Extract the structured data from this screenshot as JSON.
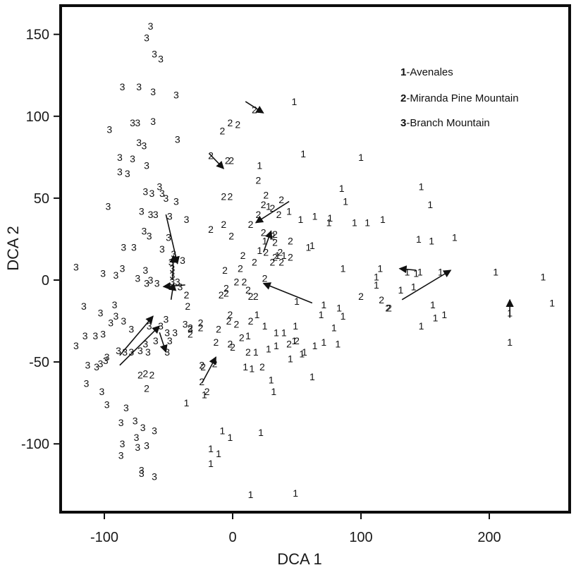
{
  "chart_data": {
    "type": "scatter",
    "xlabel": "DCA 1",
    "ylabel": "DCA 2",
    "xlim": [
      -125,
      260
    ],
    "ylim": [
      -142,
      167
    ],
    "x_ticks": [
      -100,
      0,
      100,
      200
    ],
    "y_ticks": [
      -100,
      -50,
      0,
      50,
      100,
      150
    ],
    "grid": false,
    "legend_position": "top-right",
    "series": [
      {
        "name": "1-Avenales",
        "marker": "1",
        "points": [
          [
            48,
            109
          ],
          [
            55,
            77
          ],
          [
            100,
            75
          ],
          [
            21,
            70
          ],
          [
            85,
            56
          ],
          [
            88,
            48
          ],
          [
            147,
            57
          ],
          [
            154,
            46
          ],
          [
            28,
            45
          ],
          [
            44,
            42
          ],
          [
            64,
            39
          ],
          [
            76,
            38
          ],
          [
            75,
            35
          ],
          [
            53,
            37
          ],
          [
            95,
            35
          ],
          [
            117,
            37
          ],
          [
            105,
            35
          ],
          [
            145,
            25
          ],
          [
            155,
            24
          ],
          [
            173,
            26
          ],
          [
            62,
            21
          ],
          [
            21,
            18
          ],
          [
            25,
            24
          ],
          [
            35,
            15
          ],
          [
            40,
            15
          ],
          [
            59,
            20
          ],
          [
            86,
            7
          ],
          [
            112,
            2
          ],
          [
            115,
            7
          ],
          [
            146,
            5
          ],
          [
            136,
            5
          ],
          [
            143,
            4
          ],
          [
            162,
            5
          ],
          [
            131,
            -6
          ],
          [
            112,
            -3
          ],
          [
            141,
            -4
          ],
          [
            205,
            5
          ],
          [
            242,
            2
          ],
          [
            249,
            -14
          ],
          [
            50,
            -13
          ],
          [
            71,
            -15
          ],
          [
            83,
            -17
          ],
          [
            69,
            -21
          ],
          [
            86,
            -22
          ],
          [
            79,
            -29
          ],
          [
            156,
            -15
          ],
          [
            165,
            -21
          ],
          [
            158,
            -23
          ],
          [
            147,
            -28
          ],
          [
            216,
            -20
          ],
          [
            216,
            -38
          ],
          [
            19,
            -21
          ],
          [
            25,
            -28
          ],
          [
            49,
            -28
          ],
          [
            34,
            -32
          ],
          [
            40,
            -32
          ],
          [
            48,
            -37
          ],
          [
            64,
            -40
          ],
          [
            71,
            -38
          ],
          [
            82,
            -39
          ],
          [
            56,
            -44
          ],
          [
            34,
            -40
          ],
          [
            12,
            -34
          ],
          [
            18,
            -44
          ],
          [
            28,
            -42
          ],
          [
            45,
            -48
          ],
          [
            54,
            -45
          ],
          [
            62,
            -59
          ],
          [
            10,
            -53
          ],
          [
            15,
            -54
          ],
          [
            30,
            -61
          ],
          [
            32,
            -68
          ],
          [
            -36,
            -75
          ],
          [
            -22,
            -70
          ],
          [
            -8,
            -92
          ],
          [
            -2,
            -96
          ],
          [
            -17,
            -103
          ],
          [
            -11,
            -106
          ],
          [
            -17,
            -112
          ],
          [
            22,
            -93
          ],
          [
            14,
            -131
          ],
          [
            49,
            -130
          ]
        ]
      },
      {
        "name": "2-Miranda Pine Mountain",
        "marker": "2",
        "points": [
          [
            17,
            104
          ],
          [
            -2,
            96
          ],
          [
            4,
            95
          ],
          [
            -8,
            91
          ],
          [
            -17,
            76
          ],
          [
            -4,
            73
          ],
          [
            -1,
            73
          ],
          [
            20,
            61
          ],
          [
            -7,
            51
          ],
          [
            -2,
            51
          ],
          [
            26,
            52
          ],
          [
            24,
            46
          ],
          [
            38,
            49
          ],
          [
            20,
            40
          ],
          [
            31,
            44
          ],
          [
            36,
            40
          ],
          [
            14,
            34
          ],
          [
            -17,
            31
          ],
          [
            -7,
            34
          ],
          [
            -1,
            27
          ],
          [
            33,
            28
          ],
          [
            24,
            29
          ],
          [
            31,
            27
          ],
          [
            33,
            23
          ],
          [
            37,
            17
          ],
          [
            45,
            24
          ],
          [
            26,
            17
          ],
          [
            17,
            11
          ],
          [
            -6,
            6
          ],
          [
            6,
            7
          ],
          [
            8,
            15
          ],
          [
            33,
            14
          ],
          [
            45,
            14
          ],
          [
            31,
            11
          ],
          [
            38,
            11
          ],
          [
            3,
            -1
          ],
          [
            9,
            -1
          ],
          [
            -5,
            -5
          ],
          [
            -5,
            -8
          ],
          [
            12,
            -6
          ],
          [
            14,
            -10
          ],
          [
            18,
            -10
          ],
          [
            25,
            1
          ],
          [
            -9,
            -9
          ],
          [
            -36,
            -9
          ],
          [
            -35,
            -16
          ],
          [
            -25,
            -26
          ],
          [
            -25,
            -29
          ],
          [
            -33,
            -29
          ],
          [
            -33,
            -33
          ],
          [
            -2,
            -21
          ],
          [
            -3,
            -25
          ],
          [
            3,
            -27
          ],
          [
            14,
            -25
          ],
          [
            7,
            -35
          ],
          [
            -11,
            -30
          ],
          [
            -13,
            -38
          ],
          [
            -23,
            -53
          ],
          [
            -14,
            -51
          ],
          [
            -24,
            -52
          ],
          [
            -24,
            -62
          ],
          [
            -20,
            -68
          ],
          [
            -68,
            -57
          ],
          [
            -63,
            -58
          ],
          [
            -72,
            -58
          ],
          [
            -67,
            -66
          ],
          [
            0,
            -41
          ],
          [
            -2,
            -39
          ],
          [
            44,
            -39
          ],
          [
            50,
            -37
          ],
          [
            12,
            -44
          ],
          [
            23,
            -53
          ],
          [
            100,
            -10
          ],
          [
            116,
            -12
          ],
          [
            121,
            -17
          ],
          [
            122,
            -17
          ]
        ]
      },
      {
        "name": "3-Branch Mountain",
        "marker": "3",
        "points": [
          [
            -64,
            155
          ],
          [
            -67,
            148
          ],
          [
            -61,
            138
          ],
          [
            -56,
            135
          ],
          [
            -86,
            118
          ],
          [
            -73,
            118
          ],
          [
            -62,
            115
          ],
          [
            -44,
            113
          ],
          [
            -78,
            96
          ],
          [
            -74,
            96
          ],
          [
            -62,
            97
          ],
          [
            -43,
            86
          ],
          [
            -96,
            92
          ],
          [
            -73,
            84
          ],
          [
            -69,
            82
          ],
          [
            -88,
            75
          ],
          [
            -78,
            74
          ],
          [
            -67,
            70
          ],
          [
            -88,
            66
          ],
          [
            -82,
            65
          ],
          [
            -57,
            57
          ],
          [
            -68,
            54
          ],
          [
            -63,
            53
          ],
          [
            -55,
            53
          ],
          [
            -52,
            50
          ],
          [
            -44,
            48
          ],
          [
            -71,
            42
          ],
          [
            -64,
            40
          ],
          [
            -60,
            40
          ],
          [
            -49,
            39
          ],
          [
            -36,
            37
          ],
          [
            -97,
            45
          ],
          [
            -69,
            30
          ],
          [
            -65,
            27
          ],
          [
            -50,
            26
          ],
          [
            -85,
            20
          ],
          [
            -77,
            20
          ],
          [
            -55,
            19
          ],
          [
            -46,
            16
          ],
          [
            -48,
            11
          ],
          [
            -39,
            12
          ],
          [
            -47,
            7
          ],
          [
            -68,
            6
          ],
          [
            -91,
            3
          ],
          [
            -86,
            7
          ],
          [
            -101,
            4
          ],
          [
            -47,
            3
          ],
          [
            -64,
            0
          ],
          [
            -67,
            -2
          ],
          [
            -74,
            1
          ],
          [
            -43,
            -1
          ],
          [
            -47,
            -1
          ],
          [
            -59,
            -2
          ],
          [
            -41,
            -4
          ],
          [
            -122,
            8
          ],
          [
            -116,
            -16
          ],
          [
            -103,
            -20
          ],
          [
            -92,
            -15
          ],
          [
            -91,
            -22
          ],
          [
            -95,
            -26
          ],
          [
            -85,
            -25
          ],
          [
            -79,
            -30
          ],
          [
            -65,
            -28
          ],
          [
            -52,
            -24
          ],
          [
            -56,
            -28
          ],
          [
            -51,
            -32
          ],
          [
            -45,
            -32
          ],
          [
            -49,
            -37
          ],
          [
            -60,
            -37
          ],
          [
            -51,
            -44
          ],
          [
            -68,
            -39
          ],
          [
            -66,
            -44
          ],
          [
            -72,
            -43
          ],
          [
            -79,
            -44
          ],
          [
            -89,
            -43
          ],
          [
            -84,
            -44
          ],
          [
            -98,
            -47
          ],
          [
            -99,
            -49
          ],
          [
            -115,
            -34
          ],
          [
            -107,
            -34
          ],
          [
            -101,
            -33
          ],
          [
            -122,
            -40
          ],
          [
            -103,
            -51
          ],
          [
            -106,
            -53
          ],
          [
            -113,
            -52
          ],
          [
            -114,
            -63
          ],
          [
            -102,
            -68
          ],
          [
            -98,
            -76
          ],
          [
            -83,
            -78
          ],
          [
            -87,
            -87
          ],
          [
            -76,
            -86
          ],
          [
            -70,
            -90
          ],
          [
            -75,
            -96
          ],
          [
            -61,
            -92
          ],
          [
            -67,
            -101
          ],
          [
            -74,
            -102
          ],
          [
            -86,
            -100
          ],
          [
            -87,
            -107
          ],
          [
            -71,
            -116
          ],
          [
            -71,
            -118
          ],
          [
            -61,
            -120
          ],
          [
            -33,
            -30
          ],
          [
            -37,
            -27
          ]
        ]
      }
    ],
    "arrows": [
      [
        [
          10,
          109
        ],
        [
          24,
          102
        ]
      ],
      [
        [
          -18,
          77
        ],
        [
          -7,
          68
        ]
      ],
      [
        [
          44,
          48
        ],
        [
          18,
          35
        ]
      ],
      [
        [
          24,
          17
        ],
        [
          30,
          30
        ]
      ],
      [
        [
          62,
          -14
        ],
        [
          24,
          -2
        ]
      ],
      [
        [
          132,
          -12
        ],
        [
          170,
          6
        ]
      ],
      [
        [
          143,
          6
        ],
        [
          130,
          7
        ]
      ],
      [
        [
          216,
          -23
        ],
        [
          216,
          -12
        ]
      ],
      [
        [
          -52,
          40
        ],
        [
          -43,
          10
        ]
      ],
      [
        [
          -47,
          0
        ],
        [
          -46,
          15
        ]
      ],
      [
        [
          -37,
          -3
        ],
        [
          -54,
          -4
        ]
      ],
      [
        [
          -48,
          -12
        ],
        [
          -46,
          -2
        ]
      ],
      [
        [
          -88,
          -46
        ],
        [
          -62,
          -22
        ]
      ],
      [
        [
          -88,
          -52
        ],
        [
          -57,
          -28
        ]
      ],
      [
        [
          -57,
          -32
        ],
        [
          -52,
          -44
        ]
      ],
      [
        [
          -24,
          -63
        ],
        [
          -13,
          -47
        ]
      ]
    ]
  },
  "legend": [
    {
      "key": "1",
      "label": "-Avenales"
    },
    {
      "key": "2",
      "label": "-Miranda Pine Mountain"
    },
    {
      "key": "3",
      "label": "-Branch Mountain"
    }
  ],
  "colors": {
    "ink": "#111111",
    "frame": "#0d0d0d",
    "background": "#ffffff"
  }
}
